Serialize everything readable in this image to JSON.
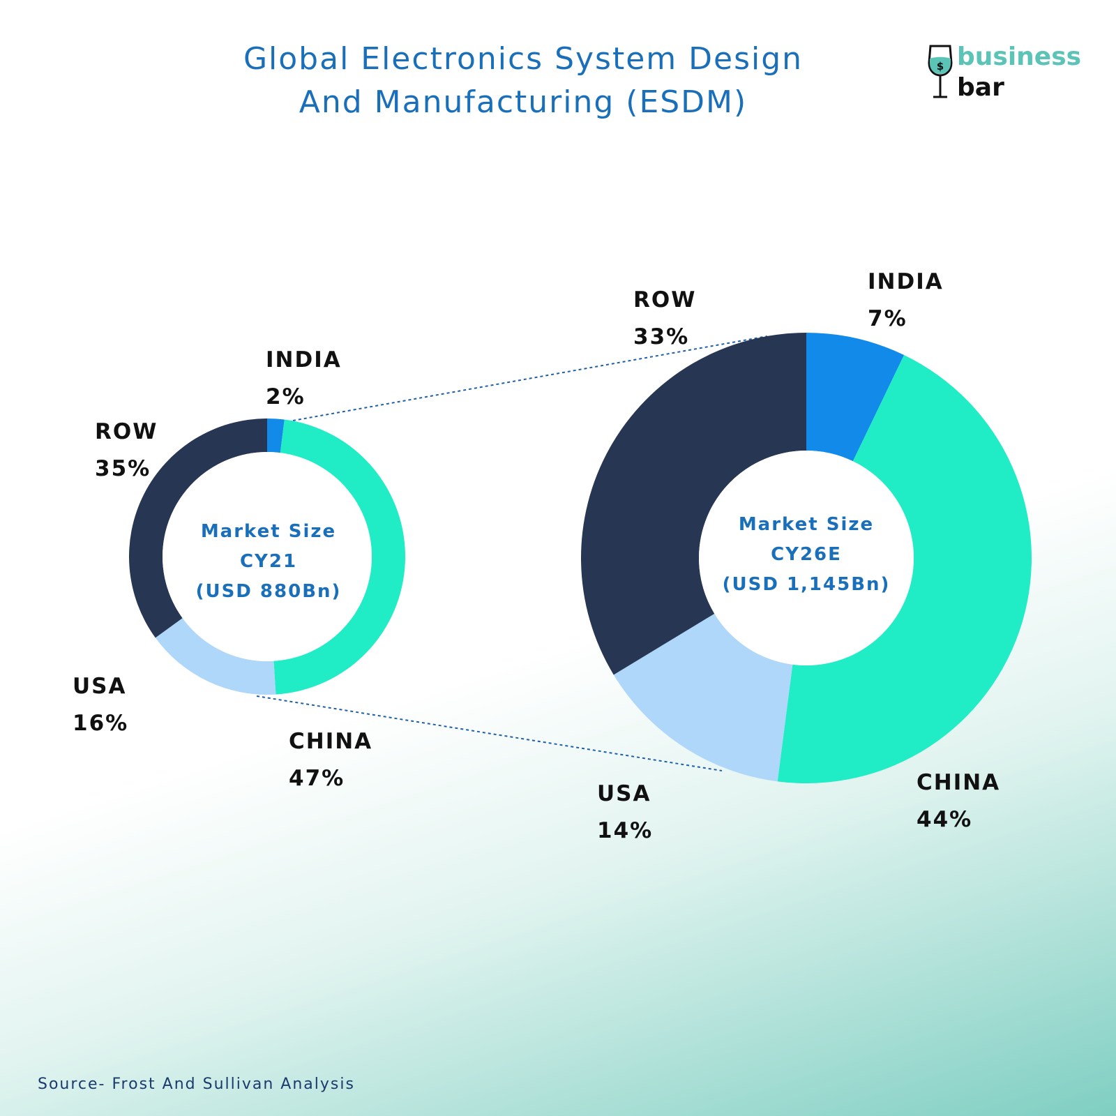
{
  "title": {
    "line1": "Global Electronics System Design",
    "line2": "And Manufacturing (ESDM)"
  },
  "logo": {
    "word1": "business",
    "word2": "bar",
    "icon": "wine-glass-dollar-icon"
  },
  "colors": {
    "INDIA": "#128aea",
    "CHINA": "#20ecc6",
    "USA": "#aed7fa",
    "ROW": "#273653",
    "title": "#1a6fba",
    "connector": "#1f5fa6"
  },
  "chart_data": [
    {
      "type": "pie",
      "variant": "donut",
      "center_label": [
        "Market Size",
        "CY21",
        "(USD 880Bn)"
      ],
      "slices": [
        {
          "label": "INDIA",
          "value": 2,
          "display": "2%"
        },
        {
          "label": "CHINA",
          "value": 47,
          "display": "47%"
        },
        {
          "label": "USA",
          "value": 16,
          "display": "16%"
        },
        {
          "label": "ROW",
          "value": 35,
          "display": "35%"
        }
      ]
    },
    {
      "type": "pie",
      "variant": "donut",
      "center_label": [
        "Market Size",
        "CY26E",
        "(USD 1,145Bn)"
      ],
      "slices": [
        {
          "label": "INDIA",
          "value": 7,
          "display": "7%"
        },
        {
          "label": "CHINA",
          "value": 44,
          "display": "44%"
        },
        {
          "label": "USA",
          "value": 14,
          "display": "14%"
        },
        {
          "label": "ROW",
          "value": 33,
          "display": "33%"
        }
      ]
    }
  ],
  "source": "Source- Frost And Sullivan Analysis"
}
